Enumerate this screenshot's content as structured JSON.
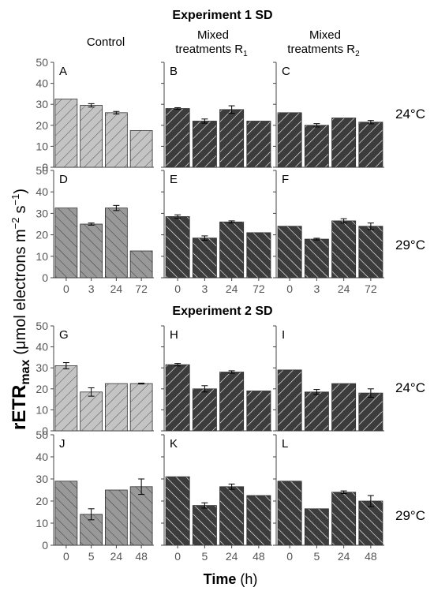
{
  "figure": {
    "title_exp1": "Experiment 1 SD",
    "title_exp2": "Experiment 2 SD",
    "col_control": "Control",
    "col_r1_line1": "Mixed",
    "col_r1_line2": "treatments R",
    "col_r1_sub": "1",
    "col_r2_line1": "Mixed",
    "col_r2_line2": "treatments R",
    "col_r2_sub": "2",
    "row_24": "24°C",
    "row_29": "29°C",
    "ylabel_main": "rETR",
    "ylabel_sub": "max",
    "ylabel_rest": "(μmol electrons m",
    "ylabel_exp1": "−2",
    "ylabel_s": "s",
    "ylabel_exp2": "−1",
    "ylabel_close": ")",
    "xlabel_main": "Time",
    "xlabel_unit": "(h)"
  },
  "colors": {
    "control_24": "#c4c4c4",
    "control_29": "#999999",
    "mixed": "#3c3c3c",
    "hatch_light": "#555555",
    "hatch_dark": "#ffffff"
  },
  "chart_data": [
    {
      "panel": "A",
      "type": "bar",
      "experiment": "Experiment 1 SD",
      "treatment": "Control",
      "temperature": "24°C",
      "categories": [
        "0",
        "3",
        "24",
        "72"
      ],
      "values": [
        32.5,
        29.5,
        26,
        17.5
      ],
      "errors": [
        0,
        0.8,
        0.6,
        0
      ],
      "ylim": [
        0,
        50
      ],
      "yticks": [
        0,
        10,
        20,
        30,
        40,
        50
      ]
    },
    {
      "panel": "B",
      "type": "bar",
      "experiment": "Experiment 1 SD",
      "treatment": "Mixed treatments R1",
      "temperature": "24°C",
      "categories": [
        "0",
        "3",
        "24",
        "72"
      ],
      "values": [
        28,
        22,
        27.5,
        22
      ],
      "errors": [
        0.4,
        1.0,
        1.8,
        0
      ],
      "ylim": [
        0,
        50
      ],
      "yticks": [
        0,
        10,
        20,
        30,
        40,
        50
      ]
    },
    {
      "panel": "C",
      "type": "bar",
      "experiment": "Experiment 1 SD",
      "treatment": "Mixed treatments R2",
      "temperature": "24°C",
      "categories": [
        "0",
        "3",
        "24",
        "72"
      ],
      "values": [
        26,
        20,
        23.5,
        21.5
      ],
      "errors": [
        0,
        0.8,
        0,
        0.8
      ],
      "ylim": [
        0,
        50
      ],
      "yticks": [
        0,
        10,
        20,
        30,
        40,
        50
      ]
    },
    {
      "panel": "D",
      "type": "bar",
      "experiment": "Experiment 1 SD",
      "treatment": "Control",
      "temperature": "29°C",
      "categories": [
        "0",
        "3",
        "24",
        "72"
      ],
      "values": [
        32.5,
        25,
        32.5,
        12.5
      ],
      "errors": [
        0,
        0.5,
        1.2,
        0
      ],
      "ylim": [
        0,
        50
      ],
      "yticks": [
        0,
        10,
        20,
        30,
        40,
        50
      ]
    },
    {
      "panel": "E",
      "type": "bar",
      "experiment": "Experiment 1 SD",
      "treatment": "Mixed treatments R1",
      "temperature": "29°C",
      "categories": [
        "0",
        "3",
        "24",
        "72"
      ],
      "values": [
        28.5,
        18.5,
        26,
        21
      ],
      "errors": [
        0.8,
        1.0,
        0.5,
        0
      ],
      "ylim": [
        0,
        50
      ],
      "yticks": [
        0,
        10,
        20,
        30,
        40,
        50
      ]
    },
    {
      "panel": "F",
      "type": "bar",
      "experiment": "Experiment 1 SD",
      "treatment": "Mixed treatments R2",
      "temperature": "29°C",
      "categories": [
        "0",
        "3",
        "24",
        "72"
      ],
      "values": [
        24,
        18,
        26.5,
        24
      ],
      "errors": [
        0,
        0.4,
        1.0,
        1.5
      ],
      "ylim": [
        0,
        50
      ],
      "yticks": [
        0,
        10,
        20,
        30,
        40,
        50
      ]
    },
    {
      "panel": "G",
      "type": "bar",
      "experiment": "Experiment 2 SD",
      "treatment": "Control",
      "temperature": "24°C",
      "categories": [
        "0",
        "5",
        "24",
        "48"
      ],
      "values": [
        31,
        18.5,
        22.5,
        22.5
      ],
      "errors": [
        1.5,
        2.0,
        0,
        0.2
      ],
      "ylim": [
        0,
        50
      ],
      "yticks": [
        0,
        10,
        20,
        30,
        40,
        50
      ]
    },
    {
      "panel": "H",
      "type": "bar",
      "experiment": "Experiment 2 SD",
      "treatment": "Mixed treatments R1",
      "temperature": "24°C",
      "categories": [
        "0",
        "5",
        "24",
        "48"
      ],
      "values": [
        31.5,
        20,
        28,
        19
      ],
      "errors": [
        0.6,
        1.5,
        0.6,
        0
      ],
      "ylim": [
        0,
        50
      ],
      "yticks": [
        0,
        10,
        20,
        30,
        40,
        50
      ]
    },
    {
      "panel": "I",
      "type": "bar",
      "experiment": "Experiment 2 SD",
      "treatment": "Mixed treatments R2",
      "temperature": "24°C",
      "categories": [
        "0",
        "5",
        "24",
        "48"
      ],
      "values": [
        29,
        18.5,
        22.5,
        18
      ],
      "errors": [
        0,
        1.2,
        0,
        2.0
      ],
      "ylim": [
        0,
        50
      ],
      "yticks": [
        0,
        10,
        20,
        30,
        40,
        50
      ]
    },
    {
      "panel": "J",
      "type": "bar",
      "experiment": "Experiment 2 SD",
      "treatment": "Control",
      "temperature": "29°C",
      "categories": [
        "0",
        "5",
        "24",
        "48"
      ],
      "values": [
        29,
        14,
        25,
        26.5
      ],
      "errors": [
        0,
        2.5,
        0,
        3.5
      ],
      "ylim": [
        0,
        50
      ],
      "yticks": [
        0,
        10,
        20,
        30,
        40,
        50
      ]
    },
    {
      "panel": "K",
      "type": "bar",
      "experiment": "Experiment 2 SD",
      "treatment": "Mixed treatments R1",
      "temperature": "29°C",
      "categories": [
        "0",
        "5",
        "24",
        "48"
      ],
      "values": [
        31,
        18,
        26.5,
        22.5
      ],
      "errors": [
        0,
        1.2,
        1.2,
        0
      ],
      "ylim": [
        0,
        50
      ],
      "yticks": [
        0,
        10,
        20,
        30,
        40,
        50
      ]
    },
    {
      "panel": "L",
      "type": "bar",
      "experiment": "Experiment 2 SD",
      "treatment": "Mixed treatments R2",
      "temperature": "29°C",
      "categories": [
        "0",
        "5",
        "24",
        "48"
      ],
      "values": [
        29,
        16.5,
        24,
        20
      ],
      "errors": [
        0,
        0,
        0.6,
        2.5
      ],
      "ylim": [
        0,
        50
      ],
      "yticks": [
        0,
        10,
        20,
        30,
        40,
        50
      ]
    }
  ]
}
